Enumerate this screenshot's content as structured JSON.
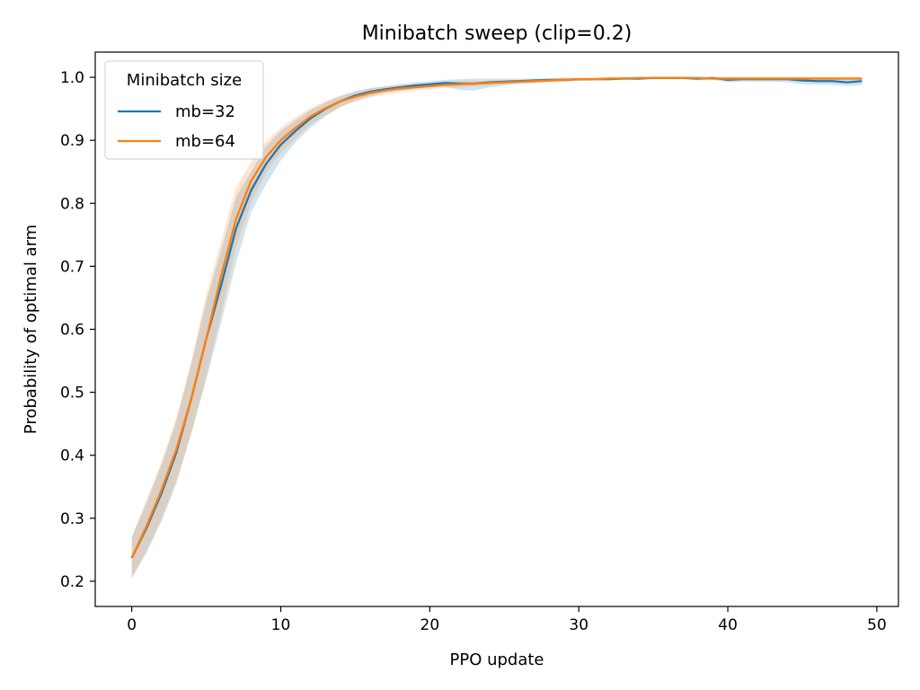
{
  "chart_data": {
    "type": "line",
    "title": "Minibatch sweep (clip=0.2)",
    "xlabel": "PPO update",
    "ylabel": "Probability of optimal arm",
    "xlim": [
      -2.45,
      51.45
    ],
    "ylim": [
      0.16,
      1.04
    ],
    "xticks": [
      0,
      10,
      20,
      30,
      40,
      50
    ],
    "yticks": [
      0.2,
      0.3,
      0.4,
      0.5,
      0.6,
      0.7,
      0.8,
      0.9,
      1.0
    ],
    "xtick_labels": [
      "0",
      "10",
      "20",
      "30",
      "40",
      "50"
    ],
    "ytick_labels": [
      "0.2",
      "0.3",
      "0.4",
      "0.5",
      "0.6",
      "0.7",
      "0.8",
      "0.9",
      "1.0"
    ],
    "grid": false,
    "legend": {
      "title": "Minibatch size",
      "position": "top-left"
    },
    "x": [
      0,
      1,
      2,
      3,
      4,
      5,
      6,
      7,
      8,
      9,
      10,
      11,
      12,
      13,
      14,
      15,
      16,
      17,
      18,
      19,
      20,
      21,
      22,
      23,
      24,
      25,
      26,
      27,
      28,
      29,
      30,
      31,
      32,
      33,
      34,
      35,
      36,
      37,
      38,
      39,
      40,
      41,
      42,
      43,
      44,
      45,
      46,
      47,
      48,
      49
    ],
    "series": [
      {
        "name": "mb=32",
        "color": "#1f77b4",
        "values": [
          0.237,
          0.285,
          0.34,
          0.405,
          0.49,
          0.585,
          0.67,
          0.76,
          0.82,
          0.862,
          0.893,
          0.915,
          0.935,
          0.95,
          0.962,
          0.971,
          0.977,
          0.981,
          0.984,
          0.987,
          0.989,
          0.991,
          0.99,
          0.99,
          0.992,
          0.993,
          0.994,
          0.995,
          0.996,
          0.996,
          0.997,
          0.997,
          0.997,
          0.998,
          0.998,
          0.999,
          0.999,
          0.999,
          0.998,
          0.999,
          0.996,
          0.997,
          0.997,
          0.997,
          0.997,
          0.995,
          0.994,
          0.994,
          0.992,
          0.994
        ],
        "lower": [
          0.205,
          0.245,
          0.295,
          0.355,
          0.435,
          0.52,
          0.61,
          0.705,
          0.785,
          0.83,
          0.868,
          0.897,
          0.92,
          0.938,
          0.953,
          0.963,
          0.97,
          0.976,
          0.979,
          0.982,
          0.984,
          0.985,
          0.98,
          0.979,
          0.984,
          0.987,
          0.99,
          0.991,
          0.993,
          0.993,
          0.994,
          0.995,
          0.995,
          0.996,
          0.996,
          0.997,
          0.997,
          0.997,
          0.995,
          0.996,
          0.992,
          0.993,
          0.993,
          0.993,
          0.992,
          0.989,
          0.988,
          0.988,
          0.986,
          0.988
        ],
        "upper": [
          0.27,
          0.325,
          0.385,
          0.455,
          0.545,
          0.645,
          0.725,
          0.81,
          0.85,
          0.89,
          0.915,
          0.932,
          0.948,
          0.96,
          0.97,
          0.978,
          0.983,
          0.986,
          0.989,
          0.992,
          0.994,
          0.996,
          0.997,
          0.998,
          0.998,
          0.998,
          0.998,
          0.998,
          0.998,
          0.999,
          0.999,
          0.999,
          0.999,
          1.0,
          1.0,
          1.0,
          1.0,
          1.0,
          1.0,
          1.0,
          1.0,
          1.0,
          1.0,
          1.0,
          1.0,
          1.0,
          0.999,
          0.999,
          0.998,
          0.999
        ]
      },
      {
        "name": "mb=64",
        "color": "#ff7f0e",
        "values": [
          0.237,
          0.288,
          0.345,
          0.41,
          0.49,
          0.585,
          0.685,
          0.775,
          0.835,
          0.873,
          0.9,
          0.92,
          0.938,
          0.951,
          0.962,
          0.969,
          0.975,
          0.979,
          0.982,
          0.984,
          0.986,
          0.988,
          0.989,
          0.99,
          0.991,
          0.992,
          0.993,
          0.994,
          0.995,
          0.996,
          0.997,
          0.997,
          0.998,
          0.998,
          0.999,
          0.999,
          0.999,
          0.999,
          0.999,
          0.998,
          0.998,
          0.998,
          0.998,
          0.998,
          0.998,
          0.998,
          0.998,
          0.998,
          0.998,
          0.998
        ],
        "lower": [
          0.205,
          0.25,
          0.3,
          0.36,
          0.435,
          0.525,
          0.625,
          0.73,
          0.8,
          0.848,
          0.88,
          0.903,
          0.925,
          0.94,
          0.953,
          0.961,
          0.968,
          0.973,
          0.976,
          0.979,
          0.981,
          0.983,
          0.984,
          0.986,
          0.987,
          0.989,
          0.99,
          0.991,
          0.992,
          0.993,
          0.995,
          0.995,
          0.996,
          0.996,
          0.997,
          0.997,
          0.997,
          0.997,
          0.997,
          0.996,
          0.996,
          0.996,
          0.996,
          0.996,
          0.996,
          0.996,
          0.996,
          0.996,
          0.996,
          0.996
        ],
        "upper": [
          0.27,
          0.33,
          0.39,
          0.46,
          0.55,
          0.655,
          0.74,
          0.825,
          0.865,
          0.898,
          0.92,
          0.937,
          0.951,
          0.962,
          0.971,
          0.977,
          0.982,
          0.985,
          0.988,
          0.989,
          0.991,
          0.993,
          0.994,
          0.994,
          0.995,
          0.995,
          0.996,
          0.997,
          0.998,
          0.999,
          0.999,
          0.999,
          1.0,
          1.0,
          1.0,
          1.0,
          1.0,
          1.0,
          1.0,
          1.0,
          1.0,
          1.0,
          1.0,
          1.0,
          1.0,
          1.0,
          1.0,
          1.0,
          1.0,
          1.0
        ]
      }
    ]
  }
}
